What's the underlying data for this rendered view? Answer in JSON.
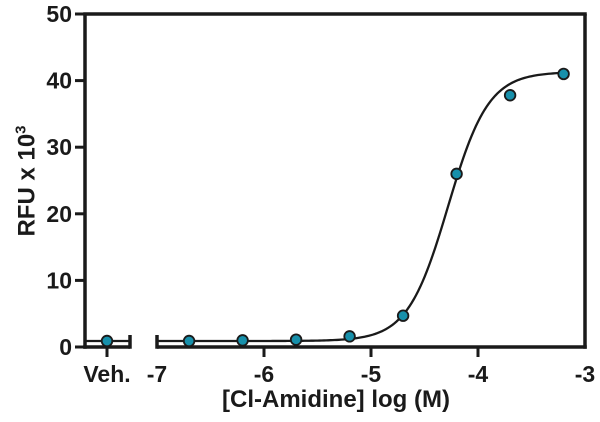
{
  "figure": {
    "background": "#ffffff"
  },
  "chart_data": {
    "type": "scatter",
    "title": "",
    "xlabel": "[Cl-Amidine] log (M)",
    "ylabel": "RFU x 10³",
    "ylabel_parts": {
      "base": "RFU x 10",
      "exponent": "3"
    },
    "x_axis": {
      "tick_labels": [
        "-7",
        "-6",
        "-5",
        "-4",
        "-3"
      ],
      "tick_values": [
        -7,
        -6,
        -5,
        -4,
        -3
      ],
      "range_log": [
        -7,
        -3
      ],
      "vehicle_label": "Veh.",
      "axis_break_after_vehicle": true,
      "ticks_with_marks_below": [
        -6,
        -5,
        -4
      ]
    },
    "y_axis": {
      "tick_labels": [
        "0",
        "10",
        "20",
        "30",
        "40",
        "50"
      ],
      "tick_values": [
        0,
        10,
        20,
        30,
        40,
        50
      ],
      "range": [
        0,
        50
      ]
    },
    "series": [
      {
        "name": "Vehicle",
        "points": [
          {
            "x_label": "Veh.",
            "y": 0.9
          }
        ]
      },
      {
        "name": "Cl-Amidine",
        "points": [
          {
            "log_m": -6.7,
            "y": 0.9
          },
          {
            "log_m": -6.2,
            "y": 1.0
          },
          {
            "log_m": -5.7,
            "y": 1.1
          },
          {
            "log_m": -5.2,
            "y": 1.6
          },
          {
            "log_m": -4.7,
            "y": 4.7
          },
          {
            "log_m": -4.2,
            "y": 26.0
          },
          {
            "log_m": -3.7,
            "y": 37.8
          },
          {
            "log_m": -3.2,
            "y": 41.0
          }
        ]
      }
    ],
    "fit_curve": {
      "model": "four_parameter_logistic",
      "bottom": 0.9,
      "top": 41.3,
      "log_ec50": -4.28,
      "hill_slope": 2.3,
      "x_start_log": -7,
      "x_end_log": -3.2
    },
    "colors": {
      "marker_fill": "#1790AB",
      "marker_stroke": "#1a1a1a",
      "curve": "#1a1a1a",
      "axis": "#1a1a1a",
      "text": "#1a1a1a"
    }
  }
}
